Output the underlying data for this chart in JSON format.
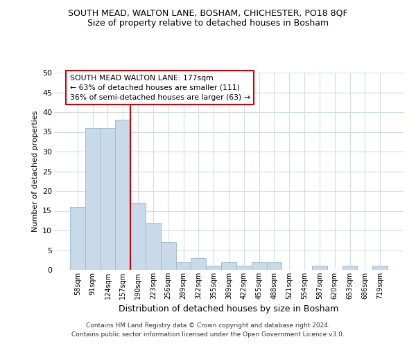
{
  "title": "SOUTH MEAD, WALTON LANE, BOSHAM, CHICHESTER, PO18 8QF",
  "subtitle": "Size of property relative to detached houses in Bosham",
  "xlabel": "Distribution of detached houses by size in Bosham",
  "ylabel": "Number of detached properties",
  "categories": [
    "58sqm",
    "91sqm",
    "124sqm",
    "157sqm",
    "190sqm",
    "223sqm",
    "256sqm",
    "289sqm",
    "322sqm",
    "355sqm",
    "389sqm",
    "422sqm",
    "455sqm",
    "488sqm",
    "521sqm",
    "554sqm",
    "587sqm",
    "620sqm",
    "653sqm",
    "686sqm",
    "719sqm"
  ],
  "values": [
    16,
    36,
    36,
    38,
    17,
    12,
    7,
    2,
    3,
    1,
    2,
    1,
    2,
    2,
    0,
    0,
    1,
    0,
    1,
    0,
    1
  ],
  "bar_color": "#c8daea",
  "bar_edge_color": "#a0bcd0",
  "vline_position": 3.5,
  "vline_color": "#cc0000",
  "annotation_label": "SOUTH MEAD WALTON LANE: 177sqm",
  "annotation_line1": "← 63% of detached houses are smaller (111)",
  "annotation_line2": "36% of semi-detached houses are larger (63) →",
  "annotation_box_facecolor": "#ffffff",
  "annotation_box_edgecolor": "#cc0000",
  "ylim": [
    0,
    50
  ],
  "yticks": [
    0,
    5,
    10,
    15,
    20,
    25,
    30,
    35,
    40,
    45,
    50
  ],
  "background_color": "#ffffff",
  "grid_color": "#d0dce8",
  "footer_line1": "Contains HM Land Registry data © Crown copyright and database right 2024.",
  "footer_line2": "Contains public sector information licensed under the Open Government Licence v3.0."
}
